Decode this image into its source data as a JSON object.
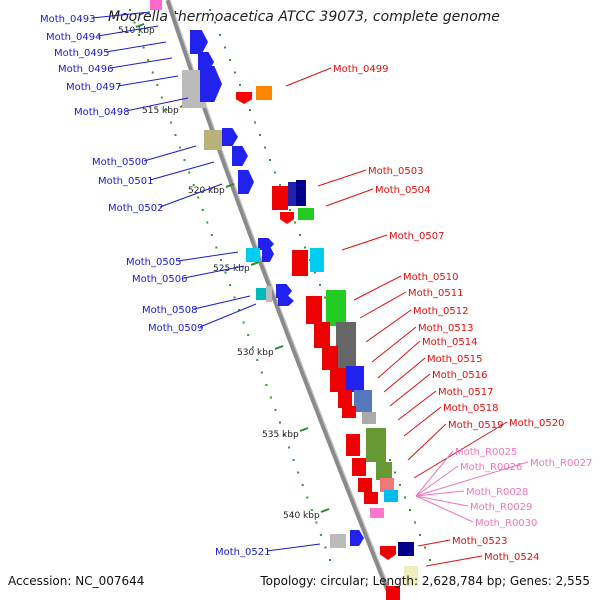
{
  "title": "Moorella thermoacetica ATCC 39073, complete genome",
  "footer": {
    "accession": "Accession: NC_007644",
    "summary": "Topology: circular; Length: 2,628,784 bp; Genes: 2,555"
  },
  "colors": {
    "reverse_label": "#1a1acc",
    "forward_label": "#dd1111",
    "rna_label": "#ee77bb",
    "backbone": "#8a8a8a",
    "tick": "#2a8a2a",
    "dot": "#339933"
  },
  "scale_ticks": [
    "510 kbp",
    "515 kbp",
    "520 kbp",
    "525 kbp",
    "530 kbp",
    "535 kbp",
    "540 kbp"
  ],
  "labels": {
    "reverse": [
      "Moth_0493",
      "Moth_0494",
      "Moth_0495",
      "Moth_0496",
      "Moth_0497",
      "Moth_0498",
      "Moth_0500",
      "Moth_0501",
      "Moth_0502",
      "Moth_0505",
      "Moth_0506",
      "Moth_0508",
      "Moth_0509",
      "Moth_0521"
    ],
    "forward": [
      "Moth_0499",
      "Moth_0503",
      "Moth_0504",
      "Moth_0507",
      "Moth_0510",
      "Moth_0511",
      "Moth_0512",
      "Moth_0513",
      "Moth_0514",
      "Moth_0515",
      "Moth_0516",
      "Moth_0517",
      "Moth_0518",
      "Moth_0519",
      "Moth_0520",
      "Moth_0523",
      "Moth_0524"
    ],
    "rna": [
      "Moth_R0025",
      "Moth_R0026",
      "Moth_R0027",
      "Moth_R0028",
      "Moth_R0029",
      "Moth_R0030"
    ]
  }
}
